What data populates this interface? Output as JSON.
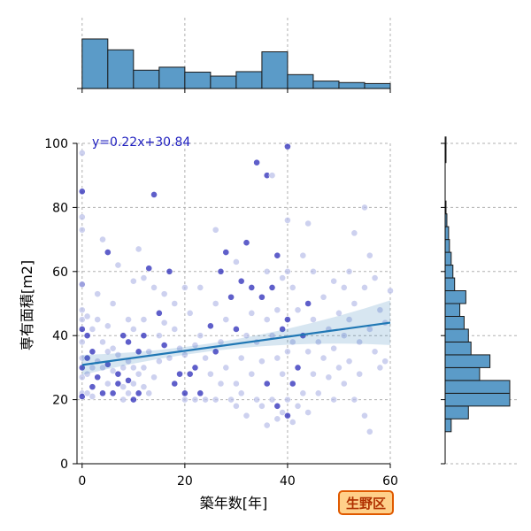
{
  "chart_data": {
    "type": "scatter",
    "xlabel": "築年数[年]",
    "ylabel": "専有面積[m2]",
    "xlim": [
      -1,
      60
    ],
    "ylim": [
      0,
      100
    ],
    "x_ticks": [
      0,
      20,
      40,
      60
    ],
    "y_ticks": [
      0,
      20,
      40,
      60,
      80,
      100
    ],
    "grid": true,
    "regression": {
      "slope": 0.22,
      "intercept": 30.84,
      "label": "y=0.22x+30.84",
      "color": "#1f77b4"
    },
    "badge": {
      "text": "生野区",
      "fill": "#ffd08a",
      "stroke": "#e05a00"
    },
    "point_colors": {
      "light": "#b8bde8",
      "dark": "#2a2ab8"
    },
    "hist_color": "#5b9bc8",
    "x_hist": {
      "bin_edges": [
        0,
        5,
        10,
        15,
        20,
        25,
        30,
        35,
        40,
        45,
        50,
        55,
        60
      ],
      "counts": [
        100,
        78,
        37,
        43,
        33,
        25,
        34,
        74,
        28,
        15,
        12,
        10
      ]
    },
    "y_hist": {
      "bin_edges": [
        10,
        14,
        18,
        22,
        26,
        30,
        34,
        38,
        42,
        46,
        50,
        54,
        58,
        62,
        66,
        70,
        74,
        78,
        82,
        86,
        90,
        94,
        98,
        102
      ],
      "counts": [
        7,
        27,
        75,
        75,
        40,
        52,
        30,
        27,
        22,
        17,
        24,
        11,
        9,
        7,
        5,
        4,
        2,
        1,
        0,
        0,
        0,
        1,
        1
      ]
    },
    "points": [
      [
        0,
        56
      ],
      [
        0,
        48
      ],
      [
        0,
        45
      ],
      [
        0,
        42
      ],
      [
        0,
        38
      ],
      [
        0,
        33
      ],
      [
        0,
        30
      ],
      [
        0,
        27
      ],
      [
        0,
        22
      ],
      [
        0,
        21
      ],
      [
        0,
        56
      ],
      [
        0,
        97
      ],
      [
        0,
        85
      ],
      [
        0,
        77
      ],
      [
        0,
        73
      ],
      [
        1,
        33
      ],
      [
        1,
        28
      ],
      [
        1,
        22
      ],
      [
        1,
        40
      ],
      [
        1,
        46
      ],
      [
        2,
        21
      ],
      [
        2,
        35
      ],
      [
        2,
        30
      ],
      [
        2,
        42
      ],
      [
        2,
        24
      ],
      [
        3,
        53
      ],
      [
        3,
        32
      ],
      [
        3,
        27
      ],
      [
        3,
        45
      ],
      [
        4,
        70
      ],
      [
        4,
        22
      ],
      [
        4,
        38
      ],
      [
        4,
        30
      ],
      [
        5,
        31
      ],
      [
        5,
        25
      ],
      [
        5,
        43
      ],
      [
        5,
        66
      ],
      [
        5,
        35
      ],
      [
        6,
        29
      ],
      [
        6,
        22
      ],
      [
        6,
        50
      ],
      [
        6,
        36
      ],
      [
        7,
        28
      ],
      [
        7,
        62
      ],
      [
        7,
        34
      ],
      [
        7,
        25
      ],
      [
        8,
        20
      ],
      [
        8,
        30
      ],
      [
        8,
        40
      ],
      [
        8,
        24
      ],
      [
        9,
        32
      ],
      [
        9,
        26
      ],
      [
        9,
        22
      ],
      [
        9,
        45
      ],
      [
        9,
        38
      ],
      [
        10,
        42
      ],
      [
        10,
        25
      ],
      [
        10,
        20
      ],
      [
        10,
        30
      ],
      [
        10,
        57
      ],
      [
        11,
        35
      ],
      [
        11,
        28
      ],
      [
        11,
        67
      ],
      [
        11,
        22
      ],
      [
        12,
        30
      ],
      [
        12,
        45
      ],
      [
        12,
        40
      ],
      [
        12,
        58
      ],
      [
        12,
        24
      ],
      [
        13,
        61
      ],
      [
        13,
        35
      ],
      [
        13,
        22
      ],
      [
        14,
        84
      ],
      [
        14,
        55
      ],
      [
        14,
        27
      ],
      [
        15,
        47
      ],
      [
        15,
        40
      ],
      [
        15,
        32
      ],
      [
        16,
        37
      ],
      [
        16,
        53
      ],
      [
        16,
        44
      ],
      [
        17,
        60
      ],
      [
        17,
        33
      ],
      [
        18,
        50
      ],
      [
        18,
        25
      ],
      [
        18,
        42
      ],
      [
        19,
        36
      ],
      [
        19,
        28
      ],
      [
        20,
        55
      ],
      [
        20,
        34
      ],
      [
        20,
        22
      ],
      [
        20,
        20
      ],
      [
        21,
        47
      ],
      [
        21,
        28
      ],
      [
        22,
        37
      ],
      [
        22,
        20
      ],
      [
        22,
        30
      ],
      [
        23,
        40
      ],
      [
        23,
        55
      ],
      [
        23,
        22
      ],
      [
        24,
        33
      ],
      [
        24,
        20
      ],
      [
        25,
        43
      ],
      [
        25,
        28
      ],
      [
        26,
        73
      ],
      [
        26,
        35
      ],
      [
        26,
        50
      ],
      [
        26,
        20
      ],
      [
        27,
        60
      ],
      [
        27,
        38
      ],
      [
        27,
        25
      ],
      [
        28,
        66
      ],
      [
        28,
        45
      ],
      [
        28,
        30
      ],
      [
        29,
        52
      ],
      [
        29,
        20
      ],
      [
        30,
        63
      ],
      [
        30,
        42
      ],
      [
        30,
        25
      ],
      [
        30,
        18
      ],
      [
        31,
        57
      ],
      [
        31,
        33
      ],
      [
        31,
        22
      ],
      [
        32,
        69
      ],
      [
        32,
        40
      ],
      [
        32,
        15
      ],
      [
        33,
        55
      ],
      [
        33,
        28
      ],
      [
        33,
        47
      ],
      [
        34,
        94
      ],
      [
        34,
        38
      ],
      [
        34,
        20
      ],
      [
        35,
        52
      ],
      [
        35,
        32
      ],
      [
        35,
        18
      ],
      [
        36,
        90
      ],
      [
        36,
        60
      ],
      [
        36,
        45
      ],
      [
        36,
        25
      ],
      [
        36,
        12
      ],
      [
        37,
        90
      ],
      [
        37,
        55
      ],
      [
        37,
        40
      ],
      [
        37,
        20
      ],
      [
        38,
        65
      ],
      [
        38,
        48
      ],
      [
        38,
        33
      ],
      [
        38,
        18
      ],
      [
        38,
        14
      ],
      [
        39,
        58
      ],
      [
        39,
        42
      ],
      [
        39,
        28
      ],
      [
        39,
        16
      ],
      [
        40,
        99
      ],
      [
        40,
        76
      ],
      [
        40,
        60
      ],
      [
        40,
        45
      ],
      [
        40,
        35
      ],
      [
        40,
        20
      ],
      [
        40,
        15
      ],
      [
        41,
        55
      ],
      [
        41,
        38
      ],
      [
        41,
        25
      ],
      [
        41,
        13
      ],
      [
        42,
        48
      ],
      [
        42,
        30
      ],
      [
        42,
        18
      ],
      [
        43,
        65
      ],
      [
        43,
        40
      ],
      [
        43,
        22
      ],
      [
        44,
        75
      ],
      [
        44,
        50
      ],
      [
        44,
        35
      ],
      [
        44,
        16
      ],
      [
        45,
        45
      ],
      [
        45,
        28
      ],
      [
        45,
        60
      ],
      [
        46,
        38
      ],
      [
        46,
        22
      ],
      [
        47,
        52
      ],
      [
        47,
        33
      ],
      [
        48,
        42
      ],
      [
        48,
        27
      ],
      [
        49,
        57
      ],
      [
        49,
        36
      ],
      [
        49,
        20
      ],
      [
        50,
        47
      ],
      [
        50,
        30
      ],
      [
        51,
        55
      ],
      [
        51,
        40
      ],
      [
        51,
        25
      ],
      [
        52,
        60
      ],
      [
        52,
        45
      ],
      [
        52,
        32
      ],
      [
        53,
        72
      ],
      [
        53,
        50
      ],
      [
        53,
        20
      ],
      [
        54,
        38
      ],
      [
        54,
        28
      ],
      [
        55,
        80
      ],
      [
        55,
        55
      ],
      [
        55,
        15
      ],
      [
        56,
        65
      ],
      [
        56,
        42
      ],
      [
        56,
        10
      ],
      [
        57,
        58
      ],
      [
        57,
        35
      ],
      [
        58,
        48
      ],
      [
        58,
        30
      ],
      [
        59,
        44
      ],
      [
        59,
        32
      ],
      [
        60,
        54
      ]
    ]
  }
}
